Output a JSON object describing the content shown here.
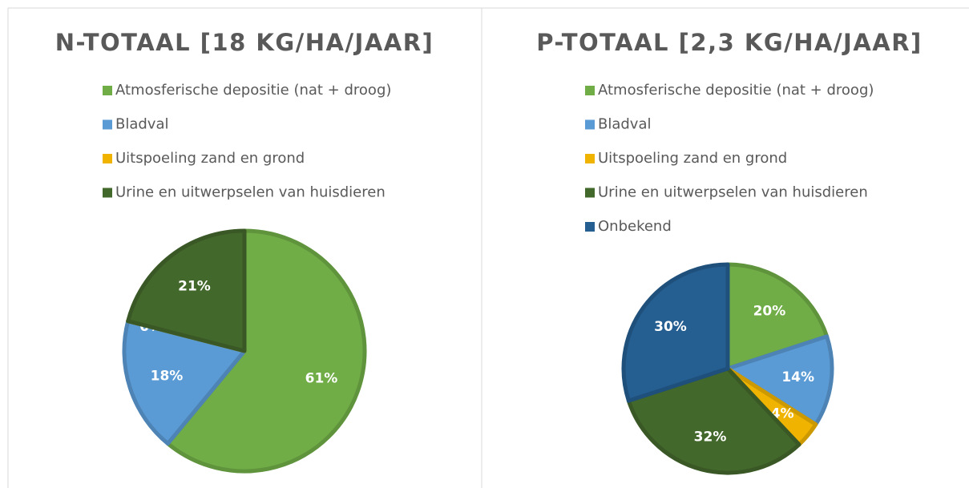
{
  "chart_data": [
    {
      "type": "pie",
      "title": "N-TOTAAL [18 KG/HA/JAAR]",
      "categories": [
        "Atmosferische depositie (nat + droog)",
        "Bladval",
        "Uitspoeling zand en grond",
        "Urine en uitwerpselen van huisdieren"
      ],
      "values": [
        61,
        18,
        0,
        21
      ],
      "value_labels": [
        "61%",
        "18%",
        "0%",
        "21%"
      ],
      "colors": [
        "#70ad47",
        "#5b9bd5",
        "#f0b400",
        "#43682b"
      ]
    },
    {
      "type": "pie",
      "title": "P-TOTAAL [2,3 KG/HA/JAAR]",
      "categories": [
        "Atmosferische depositie (nat + droog)",
        "Bladval",
        "Uitspoeling zand en grond",
        "Urine en uitwerpselen van huisdieren",
        "Onbekend"
      ],
      "values": [
        20,
        14,
        4,
        32,
        30
      ],
      "value_labels": [
        "20%",
        "14%",
        "4%",
        "32%",
        "30%"
      ],
      "colors": [
        "#70ad47",
        "#5b9bd5",
        "#f0b400",
        "#43682b",
        "#255e91"
      ]
    }
  ]
}
